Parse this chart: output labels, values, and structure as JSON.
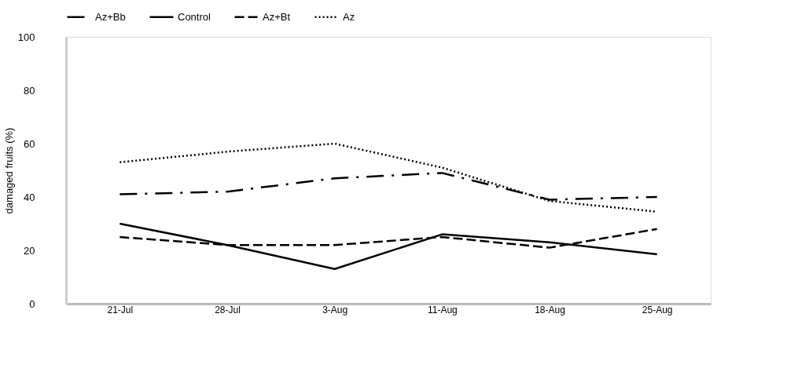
{
  "chart_data": {
    "type": "line",
    "ylabel": "damaged fruits (%)",
    "categories": [
      "21-Jul",
      "28-Jul",
      "3-Aug",
      "11-Aug",
      "18-Aug",
      "25-Aug"
    ],
    "series": [
      {
        "name": "Az+Bb",
        "color": "#000000",
        "line_style": "dashdot",
        "values": [
          41,
          42,
          47,
          49,
          39,
          40
        ]
      },
      {
        "name": "Control",
        "color": "#000000",
        "line_style": "solid",
        "values": [
          30,
          22,
          13,
          26,
          23,
          18.5
        ]
      },
      {
        "name": "Az+Bt",
        "color": "#000000",
        "line_style": "dashed",
        "values": [
          25,
          22,
          22,
          25,
          21,
          28
        ]
      },
      {
        "name": "Az",
        "color": "#000000",
        "line_style": "dotted",
        "values": [
          53,
          57,
          60,
          51,
          38.5,
          34.5
        ]
      }
    ],
    "ylim": [
      0,
      100
    ],
    "yticks": [
      0,
      20,
      40,
      60,
      80,
      100
    ],
    "grid": false,
    "legend": "top",
    "marker": "none"
  }
}
